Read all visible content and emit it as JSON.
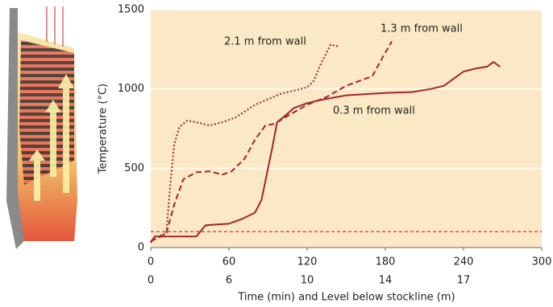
{
  "chart_data": {
    "type": "line",
    "ylabel": "Temperature (°C)",
    "xlabel": "Time (min) and Level below stockline (m)",
    "xlim": [
      0,
      300
    ],
    "ylim": [
      0,
      1500
    ],
    "xticks": [
      0,
      60,
      120,
      180,
      240,
      300
    ],
    "x2ticks": [
      {
        "value": 0,
        "label": "0"
      },
      {
        "value": 60,
        "label": "6"
      },
      {
        "value": 120,
        "label": "10"
      },
      {
        "value": 180,
        "label": "14"
      },
      {
        "value": 240,
        "label": "17"
      }
    ],
    "yticks": [
      0,
      500,
      1000,
      1500
    ],
    "grid": true,
    "background": "#fbe8c4",
    "reference_line": {
      "value": 100,
      "color": "#e0302a"
    },
    "series": [
      {
        "name": "2.1 m from wall",
        "color": "#a3242a",
        "style": "dotted",
        "x": [
          0,
          5,
          12,
          15,
          18,
          22,
          28,
          35,
          45,
          55,
          65,
          80,
          100,
          120,
          125,
          130,
          135,
          138,
          142,
          145
        ],
        "values": [
          40,
          70,
          90,
          400,
          650,
          760,
          800,
          790,
          770,
          790,
          820,
          900,
          970,
          1010,
          1050,
          1150,
          1230,
          1280,
          1270,
          1270
        ]
      },
      {
        "name": "1.3 m from wall",
        "color": "#a3242a",
        "style": "dashed",
        "x": [
          0,
          8,
          12,
          18,
          25,
          35,
          45,
          55,
          62,
          72,
          80,
          88,
          95,
          105,
          120,
          135,
          150,
          160,
          170,
          178,
          185
        ],
        "values": [
          40,
          70,
          90,
          270,
          430,
          475,
          480,
          460,
          480,
          560,
          680,
          770,
          780,
          830,
          900,
          950,
          1020,
          1050,
          1080,
          1200,
          1300
        ]
      },
      {
        "name": "0.3 m from wall",
        "color": "#a3242a",
        "style": "solid",
        "x": [
          0,
          3,
          35,
          42,
          50,
          60,
          70,
          80,
          85,
          90,
          93,
          97,
          103,
          110,
          120,
          130,
          150,
          180,
          200,
          215,
          225,
          230,
          240,
          250,
          258,
          263,
          268
        ],
        "values": [
          30,
          70,
          70,
          140,
          145,
          150,
          180,
          220,
          300,
          500,
          620,
          790,
          830,
          880,
          910,
          930,
          960,
          975,
          980,
          1000,
          1020,
          1050,
          1110,
          1130,
          1140,
          1170,
          1140
        ]
      }
    ]
  }
}
